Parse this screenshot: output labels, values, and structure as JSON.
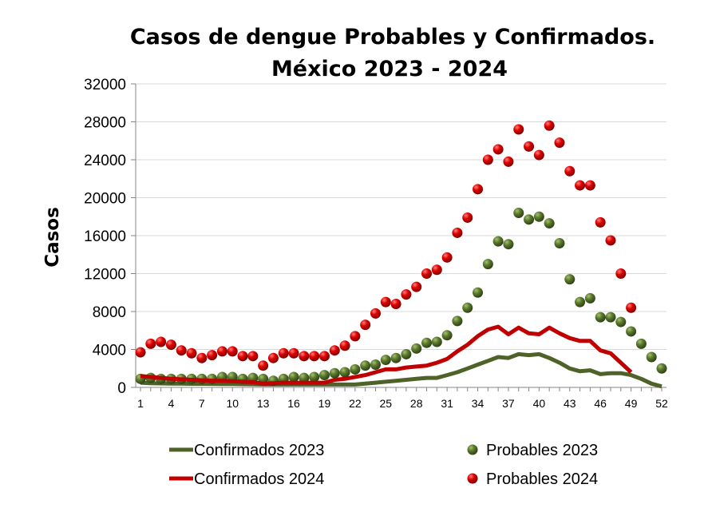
{
  "chart_data": {
    "type": "line",
    "title": [
      "Casos de dengue Probables y Confirmados.",
      "México 2023 - 2024"
    ],
    "xlabel": "",
    "ylabel": "Casos",
    "xlim": [
      1,
      52
    ],
    "ylim": [
      0,
      32000
    ],
    "yticks": [
      0,
      4000,
      8000,
      12000,
      16000,
      20000,
      24000,
      28000,
      32000
    ],
    "xticks": [
      1,
      4,
      7,
      10,
      13,
      16,
      19,
      22,
      25,
      28,
      31,
      34,
      37,
      40,
      43,
      46,
      49,
      52
    ],
    "grid": "horizontal",
    "legend_position": "bottom",
    "series": [
      {
        "name": "Confirmados 2023",
        "style": "line",
        "color": "#4f6228",
        "values": [
          500,
          450,
          420,
          400,
          400,
          380,
          380,
          370,
          360,
          350,
          340,
          330,
          300,
          300,
          300,
          300,
          300,
          300,
          300,
          300,
          300,
          300,
          400,
          500,
          600,
          700,
          800,
          900,
          1000,
          1000,
          1300,
          1600,
          2000,
          2400,
          2800,
          3200,
          3100,
          3500,
          3400,
          3500,
          3100,
          2600,
          2000,
          1700,
          1800,
          1400,
          1500,
          1500,
          1300,
          900,
          400,
          100
        ]
      },
      {
        "name": "Probables 2023",
        "style": "markers",
        "color": "#5a7a2e",
        "values": [
          900,
          1000,
          900,
          900,
          900,
          900,
          900,
          900,
          1100,
          1100,
          900,
          1000,
          900,
          700,
          900,
          1100,
          1000,
          1100,
          1300,
          1500,
          1600,
          1900,
          2300,
          2400,
          2900,
          3100,
          3500,
          4100,
          4700,
          4800,
          5500,
          7000,
          8400,
          10000,
          13000,
          15400,
          15100,
          18400,
          17700,
          18000,
          17300,
          15200,
          11400,
          9000,
          9400,
          7400,
          7400,
          6900,
          5900,
          4600,
          3200,
          2000
        ]
      },
      {
        "name": "Confirmados 2024",
        "style": "line",
        "color": "#c00000",
        "values": [
          1200,
          1100,
          1000,
          900,
          850,
          800,
          750,
          700,
          700,
          650,
          600,
          550,
          400,
          450,
          500,
          500,
          500,
          500,
          500,
          800,
          900,
          1100,
          1300,
          1600,
          1900,
          1900,
          2100,
          2200,
          2300,
          2600,
          3000,
          3800,
          4500,
          5400,
          6100,
          6400,
          5600,
          6300,
          5700,
          5600,
          6300,
          5700,
          5200,
          4900,
          4900,
          3900,
          3600,
          2600,
          1600
        ]
      },
      {
        "name": "Probables 2024",
        "style": "markers",
        "color": "#e00000",
        "values": [
          3700,
          4600,
          4800,
          4500,
          3900,
          3600,
          3100,
          3400,
          3800,
          3800,
          3300,
          3300,
          2300,
          3100,
          3600,
          3600,
          3300,
          3300,
          3300,
          3900,
          4400,
          5400,
          6600,
          7800,
          9000,
          8800,
          9800,
          10600,
          12000,
          12400,
          13700,
          16300,
          17900,
          20900,
          24000,
          25100,
          23800,
          27200,
          25400,
          24500,
          27600,
          25800,
          22800,
          21300,
          21300,
          17400,
          15500,
          12000,
          8400
        ]
      }
    ]
  }
}
